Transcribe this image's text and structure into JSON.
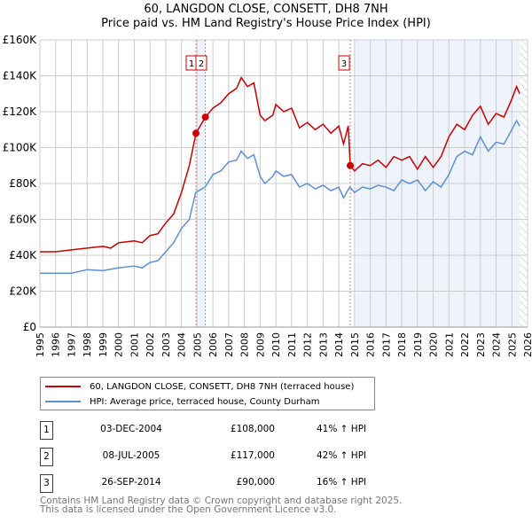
{
  "chart_data": {
    "type": "line",
    "title": "60, LANGDON CLOSE, CONSETT, DH8 7NH",
    "subtitle": "Price paid vs. HM Land Registry's House Price Index (HPI)",
    "xlim": [
      1995,
      2026
    ],
    "ylim": [
      0,
      160000
    ],
    "x_ticks": [
      "1995",
      "1996",
      "1997",
      "1998",
      "1999",
      "2000",
      "2001",
      "2002",
      "2003",
      "2004",
      "2005",
      "2006",
      "2007",
      "2008",
      "2009",
      "2010",
      "2011",
      "2012",
      "2013",
      "2014",
      "2015",
      "2016",
      "2017",
      "2018",
      "2019",
      "2020",
      "2021",
      "2022",
      "2023",
      "2024",
      "2025",
      "2026"
    ],
    "y_ticks": [
      {
        "v": 0,
        "label": "£0"
      },
      {
        "v": 20000,
        "label": "£20K"
      },
      {
        "v": 40000,
        "label": "£40K"
      },
      {
        "v": 60000,
        "label": "£60K"
      },
      {
        "v": 80000,
        "label": "£80K"
      },
      {
        "v": 100000,
        "label": "£100K"
      },
      {
        "v": 120000,
        "label": "£120K"
      },
      {
        "v": 140000,
        "label": "£140K"
      },
      {
        "v": 160000,
        "label": "£160K"
      }
    ],
    "grid": true,
    "series": [
      {
        "name": "60, LANGDON CLOSE, CONSETT, DH8 7NH (terraced house)",
        "color": "#cc0000",
        "x": [
          1995,
          1996,
          1997,
          1998,
          1999,
          1999.5,
          2000,
          2001,
          2001.5,
          2002,
          2002.5,
          2003,
          2003.5,
          2004,
          2004.5,
          2004.92,
          2005.52,
          2006,
          2006.5,
          2007,
          2007.5,
          2007.8,
          2008.2,
          2008.6,
          2009,
          2009.3,
          2009.8,
          2010,
          2010.5,
          2011,
          2011.5,
          2012,
          2012.5,
          2013,
          2013.5,
          2014,
          2014.3,
          2014.6,
          2014.73,
          2015,
          2015.5,
          2016,
          2016.5,
          2017,
          2017.5,
          2018,
          2018.5,
          2019,
          2019.5,
          2020,
          2020.5,
          2021,
          2021.5,
          2022,
          2022.5,
          2023,
          2023.5,
          2024,
          2024.5,
          2025,
          2025.3,
          2025.5
        ],
        "y": [
          42000,
          42000,
          43000,
          44000,
          45000,
          44000,
          47000,
          48000,
          47000,
          51000,
          52000,
          58000,
          63000,
          75000,
          90000,
          108000,
          117000,
          122000,
          125000,
          130000,
          133000,
          139000,
          134000,
          136000,
          118000,
          115000,
          118000,
          124000,
          120000,
          122000,
          111000,
          114000,
          110000,
          113000,
          108000,
          112000,
          102000,
          112000,
          90000,
          87000,
          91000,
          90000,
          93000,
          89000,
          95000,
          93000,
          95000,
          88000,
          95000,
          89000,
          95000,
          106000,
          113000,
          110000,
          118000,
          123000,
          113000,
          119000,
          117000,
          127000,
          134000,
          130000
        ]
      },
      {
        "name": "HPI: Average price, terraced house, County Durham",
        "color": "#5b8fd6",
        "x": [
          1995,
          1996,
          1997,
          1998,
          1999,
          2000,
          2001,
          2001.5,
          2002,
          2002.5,
          2003,
          2003.5,
          2004,
          2004.5,
          2004.9,
          2005.5,
          2006,
          2006.5,
          2007,
          2007.5,
          2007.8,
          2008.2,
          2008.6,
          2009,
          2009.3,
          2009.8,
          2010,
          2010.5,
          2011,
          2011.5,
          2012,
          2012.5,
          2013,
          2013.5,
          2014,
          2014.3,
          2014.7,
          2015,
          2015.5,
          2016,
          2016.5,
          2017,
          2017.5,
          2018,
          2018.5,
          2019,
          2019.5,
          2020,
          2020.5,
          2021,
          2021.5,
          2022,
          2022.5,
          2023,
          2023.5,
          2024,
          2024.5,
          2025,
          2025.3,
          2025.5
        ],
        "y": [
          30000,
          30000,
          30000,
          32000,
          31500,
          33000,
          34000,
          33000,
          36000,
          37000,
          42000,
          47000,
          55000,
          60000,
          75000,
          78000,
          85000,
          87000,
          92000,
          93000,
          98000,
          94000,
          96000,
          84000,
          80000,
          84000,
          87000,
          84000,
          85000,
          78000,
          80000,
          77000,
          79000,
          76000,
          78000,
          72000,
          78000,
          75000,
          78000,
          77000,
          79000,
          78000,
          76000,
          82000,
          80000,
          82000,
          76000,
          81000,
          78000,
          85000,
          95000,
          98000,
          96000,
          106000,
          98000,
          103000,
          102000,
          110000,
          115000,
          112000
        ]
      }
    ],
    "sales": [
      {
        "id": "1",
        "x": 2004.92,
        "price": 108000,
        "date": "03-DEC-2004",
        "price_label": "£108,000",
        "hpi": "41% ↑ HPI"
      },
      {
        "id": "2",
        "x": 2005.52,
        "price": 117000,
        "date": "08-JUL-2005",
        "price_label": "£117,000",
        "hpi": "42% ↑ HPI"
      },
      {
        "id": "3",
        "x": 2014.73,
        "price": 90000,
        "date": "26-SEP-2014",
        "price_label": "£90,000",
        "hpi": "16% ↑ HPI"
      }
    ],
    "shaded": [
      [
        2004.92,
        2005.52
      ],
      [
        2015,
        2025.5
      ]
    ],
    "hatched_from": 2025.5,
    "legend_position": "below"
  },
  "footer": [
    "Contains HM Land Registry data © Crown copyright and database right 2025.",
    "This data is licensed under the Open Government Licence v3.0."
  ]
}
